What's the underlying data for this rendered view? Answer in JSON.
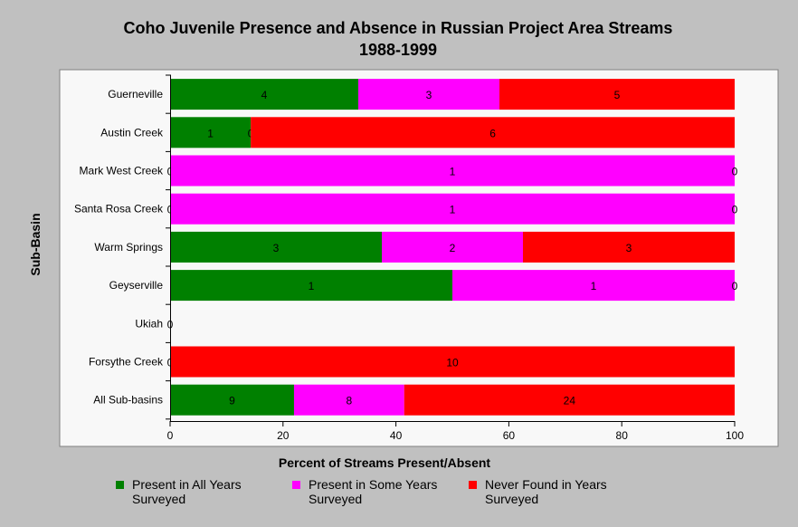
{
  "chart_data": {
    "type": "bar",
    "orientation": "horizontal",
    "stacked": true,
    "title": "Coho Juvenile Presence and Absence in Russian Project Area Streams",
    "subtitle": "1988-1999",
    "xlabel": "Percent of Streams Present/Absent",
    "ylabel": "Sub-Basin",
    "xlim": [
      0,
      100
    ],
    "xticks": [
      0,
      20,
      40,
      60,
      80,
      100
    ],
    "grid": false,
    "legend_position": "bottom",
    "categories": [
      "Guerneville",
      "Austin Creek",
      "Mark West Creek",
      "Santa Rosa Creek",
      "Warm Springs",
      "Geyserville",
      "Ukiah",
      "Forsythe Creek",
      "All Sub-basins"
    ],
    "series": [
      {
        "name": "Present in All Years Surveyed",
        "color": "#008000",
        "counts": [
          4,
          1,
          0,
          0,
          3,
          1,
          0,
          0,
          9
        ]
      },
      {
        "name": "Present in Some Years Surveyed",
        "color": "#ff00ff",
        "counts": [
          3,
          0,
          1,
          1,
          2,
          1,
          null,
          null,
          8
        ]
      },
      {
        "name": "Never Found in Years Surveyed",
        "color": "#ff0000",
        "counts": [
          5,
          6,
          0,
          0,
          3,
          0,
          null,
          10,
          24
        ]
      }
    ]
  },
  "legend": [
    {
      "line1": "Present in All Years",
      "line2": "Surveyed",
      "color": "#008000"
    },
    {
      "line1": "Present in Some Years",
      "line2": "Surveyed",
      "color": "#ff00ff"
    },
    {
      "line1": "Never Found in Years",
      "line2": "Surveyed",
      "color": "#ff0000"
    }
  ]
}
